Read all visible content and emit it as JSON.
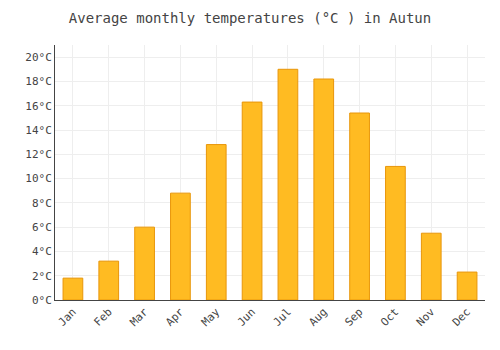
{
  "chart_data": {
    "type": "bar",
    "title": "Average monthly temperatures (°C ) in Autun",
    "categories": [
      "Jan",
      "Feb",
      "Mar",
      "Apr",
      "May",
      "Jun",
      "Jul",
      "Aug",
      "Sep",
      "Oct",
      "Nov",
      "Dec"
    ],
    "values": [
      1.8,
      3.2,
      6.0,
      8.8,
      12.8,
      16.3,
      19.0,
      18.2,
      15.4,
      11.0,
      5.5,
      2.3
    ],
    "color": "#FFBB22",
    "ylim": [
      0,
      21
    ],
    "yticks": [
      {
        "value": 0,
        "label": "0°C"
      },
      {
        "value": 2,
        "label": "2°C"
      },
      {
        "value": 4,
        "label": "4°C"
      },
      {
        "value": 6,
        "label": "6°C"
      },
      {
        "value": 8,
        "label": "8°C"
      },
      {
        "value": 10,
        "label": "10°C"
      },
      {
        "value": 12,
        "label": "12°C"
      },
      {
        "value": 14,
        "label": "14°C"
      },
      {
        "value": 16,
        "label": "16°C"
      },
      {
        "value": 18,
        "label": "18°C"
      },
      {
        "value": 20,
        "label": "20°C"
      }
    ],
    "grid": true
  }
}
